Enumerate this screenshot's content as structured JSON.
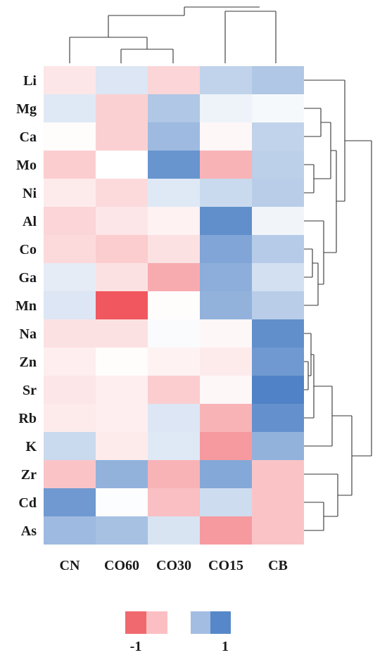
{
  "chart_data": {
    "type": "heatmap",
    "columns": [
      "CN",
      "CO60",
      "CO30",
      "CO15",
      "CB"
    ],
    "rows": [
      "Li",
      "Mg",
      "Ca",
      "Mo",
      "Ni",
      "Al",
      "Co",
      "Ga",
      "Mn",
      "Na",
      "Zn",
      "Sr",
      "Rb",
      "K",
      "Zr",
      "Cd",
      "As"
    ],
    "values": [
      [
        -0.15,
        0.2,
        -0.25,
        0.35,
        0.45
      ],
      [
        0.18,
        -0.28,
        0.45,
        0.1,
        0.05
      ],
      [
        -0.02,
        -0.28,
        0.55,
        -0.05,
        0.35
      ],
      [
        -0.3,
        0.0,
        0.85,
        -0.45,
        0.38
      ],
      [
        -0.12,
        -0.22,
        0.18,
        0.3,
        0.4
      ],
      [
        -0.25,
        -0.15,
        -0.08,
        0.9,
        0.08
      ],
      [
        -0.22,
        -0.3,
        -0.18,
        0.72,
        0.42
      ],
      [
        0.15,
        -0.18,
        -0.5,
        0.65,
        0.25
      ],
      [
        0.2,
        -1.0,
        -0.02,
        0.62,
        0.4
      ],
      [
        -0.18,
        -0.18,
        0.03,
        -0.05,
        0.9
      ],
      [
        -0.1,
        -0.02,
        -0.08,
        -0.12,
        0.82
      ],
      [
        -0.15,
        -0.1,
        -0.3,
        -0.05,
        1.0
      ],
      [
        -0.12,
        -0.1,
        0.2,
        -0.45,
        0.88
      ],
      [
        0.3,
        -0.12,
        0.18,
        -0.6,
        0.62
      ],
      [
        -0.35,
        0.62,
        -0.45,
        0.7,
        -0.35
      ],
      [
        0.82,
        0.02,
        -0.38,
        0.28,
        -0.35
      ],
      [
        0.55,
        0.5,
        0.22,
        -0.6,
        -0.35
      ]
    ],
    "color_scale": {
      "negative": "#f0575f",
      "neutral": "#ffffff",
      "positive": "#4f82c6"
    },
    "legend": {
      "min_label": "-1",
      "max_label": "1",
      "placement": "bottom"
    },
    "dendrogram": {
      "columns": true,
      "rows": true
    }
  }
}
